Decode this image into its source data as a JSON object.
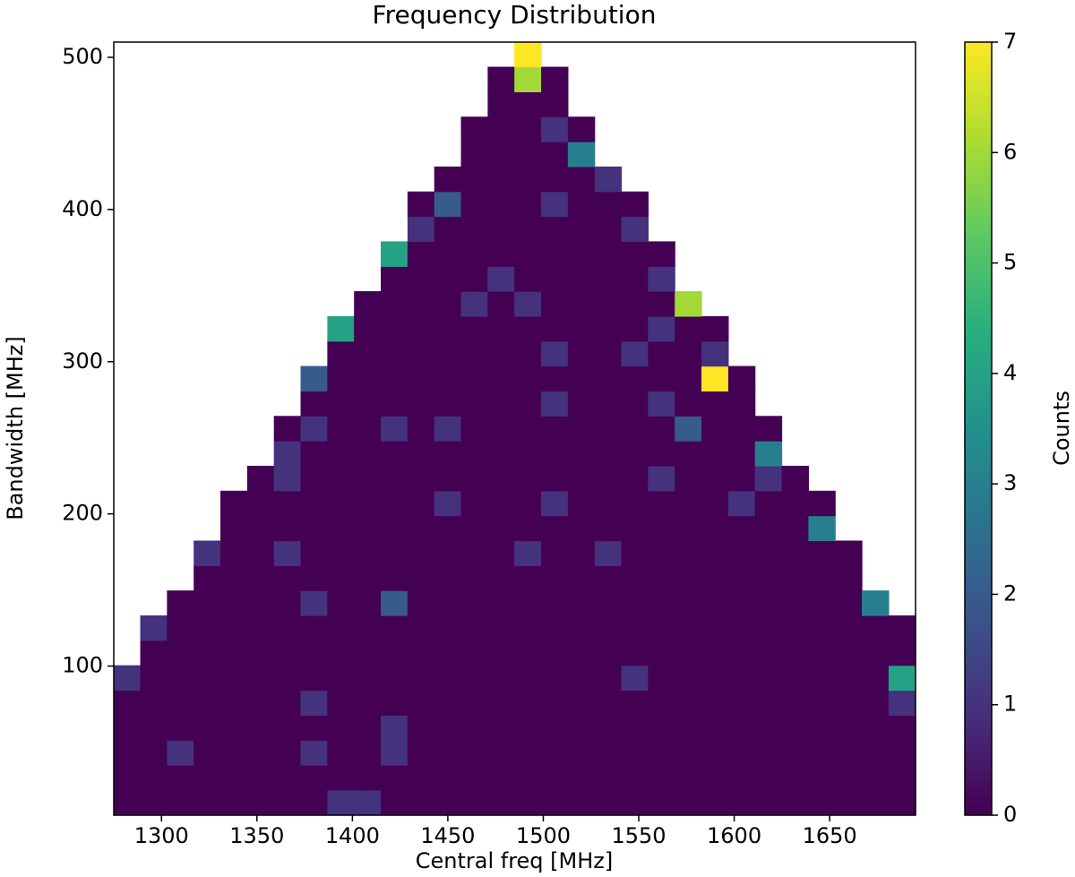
{
  "chart_data": {
    "type": "heatmap",
    "title": "Frequency Distribution",
    "x_label": "Central freq [MHz]",
    "y_label": "Bandwidth [MHz]",
    "colorbar_label": "Counts",
    "colormap": "viridis",
    "xlim": [
      1275,
      1695
    ],
    "ylim": [
      2,
      510
    ],
    "clim": [
      0,
      7
    ],
    "xticks": [
      1300,
      1350,
      1400,
      1450,
      1500,
      1550,
      1600,
      1650
    ],
    "yticks": [
      100,
      200,
      300,
      400,
      500
    ],
    "colorbar_ticks": [
      0,
      1,
      2,
      3,
      4,
      5,
      6,
      7
    ],
    "values": [
      [
        0,
        0,
        0,
        0,
        0,
        0,
        0,
        0,
        1,
        1,
        0,
        0,
        0,
        0,
        0,
        0,
        0,
        0,
        0,
        0,
        0,
        0,
        0,
        0,
        0,
        0,
        0,
        0,
        0,
        0
      ],
      [
        0,
        0,
        0,
        0,
        0,
        0,
        0,
        0,
        0,
        0,
        0,
        0,
        0,
        0,
        0,
        0,
        0,
        0,
        0,
        0,
        0,
        0,
        0,
        0,
        0,
        0,
        0,
        0,
        0,
        0
      ],
      [
        0,
        0,
        1,
        0,
        0,
        0,
        0,
        1,
        0,
        0,
        1,
        0,
        0,
        0,
        0,
        0,
        0,
        0,
        0,
        0,
        0,
        0,
        0,
        0,
        0,
        0,
        0,
        0,
        0,
        0
      ],
      [
        0,
        0,
        0,
        0,
        0,
        0,
        0,
        0,
        0,
        0,
        1,
        0,
        0,
        0,
        0,
        0,
        0,
        0,
        0,
        0,
        0,
        0,
        0,
        0,
        0,
        0,
        0,
        0,
        0,
        0
      ],
      [
        0,
        0,
        0,
        0,
        0,
        0,
        0,
        1,
        0,
        0,
        0,
        0,
        0,
        0,
        0,
        0,
        0,
        0,
        0,
        0,
        0,
        0,
        0,
        0,
        0,
        0,
        0,
        0,
        0,
        1
      ],
      [
        1,
        0,
        0,
        0,
        0,
        0,
        0,
        0,
        0,
        0,
        0,
        0,
        0,
        0,
        0,
        0,
        0,
        0,
        0,
        1,
        0,
        0,
        0,
        0,
        0,
        0,
        0,
        0,
        0,
        4
      ],
      [
        null,
        0,
        0,
        0,
        0,
        0,
        0,
        0,
        0,
        0,
        0,
        0,
        0,
        0,
        0,
        0,
        0,
        0,
        0,
        0,
        0,
        0,
        0,
        0,
        0,
        0,
        0,
        0,
        0,
        0
      ],
      [
        null,
        1,
        0,
        0,
        0,
        0,
        0,
        0,
        0,
        0,
        0,
        0,
        0,
        0,
        0,
        0,
        0,
        0,
        0,
        0,
        0,
        0,
        0,
        0,
        0,
        0,
        0,
        0,
        0,
        0
      ],
      [
        null,
        null,
        0,
        0,
        0,
        0,
        0,
        1,
        0,
        0,
        2,
        0,
        0,
        0,
        0,
        0,
        0,
        0,
        0,
        0,
        0,
        0,
        0,
        0,
        0,
        0,
        0,
        0,
        3,
        null
      ],
      [
        null,
        null,
        null,
        0,
        0,
        0,
        0,
        0,
        0,
        0,
        0,
        0,
        0,
        0,
        0,
        0,
        0,
        0,
        0,
        0,
        0,
        0,
        0,
        0,
        0,
        0,
        0,
        0,
        null,
        null
      ],
      [
        null,
        null,
        null,
        1,
        0,
        0,
        1,
        0,
        0,
        0,
        0,
        0,
        0,
        0,
        0,
        1,
        0,
        0,
        1,
        0,
        0,
        0,
        0,
        0,
        0,
        0,
        0,
        0,
        null,
        null
      ],
      [
        null,
        null,
        null,
        null,
        0,
        0,
        0,
        0,
        0,
        0,
        0,
        0,
        0,
        0,
        0,
        0,
        0,
        0,
        0,
        0,
        0,
        0,
        0,
        0,
        0,
        0,
        3,
        null,
        null,
        null
      ],
      [
        null,
        null,
        null,
        null,
        0,
        0,
        0,
        0,
        0,
        0,
        0,
        0,
        1,
        0,
        0,
        0,
        1,
        0,
        0,
        0,
        0,
        0,
        0,
        1,
        0,
        0,
        0,
        null,
        null,
        null
      ],
      [
        null,
        null,
        null,
        null,
        null,
        0,
        1,
        0,
        0,
        0,
        0,
        0,
        0,
        0,
        0,
        0,
        0,
        0,
        0,
        0,
        1,
        0,
        0,
        0,
        1,
        0,
        null,
        null,
        null,
        null
      ],
      [
        null,
        null,
        null,
        null,
        null,
        null,
        1,
        0,
        0,
        0,
        0,
        0,
        0,
        0,
        0,
        0,
        0,
        0,
        0,
        0,
        0,
        0,
        0,
        0,
        3,
        null,
        null,
        null,
        null,
        null
      ],
      [
        null,
        null,
        null,
        null,
        null,
        null,
        0,
        1,
        0,
        0,
        1,
        0,
        1,
        0,
        0,
        0,
        0,
        0,
        0,
        0,
        0,
        2,
        0,
        0,
        0,
        null,
        null,
        null,
        null,
        null
      ],
      [
        null,
        null,
        null,
        null,
        null,
        null,
        null,
        0,
        0,
        0,
        0,
        0,
        0,
        0,
        0,
        0,
        1,
        0,
        0,
        0,
        1,
        0,
        0,
        0,
        null,
        null,
        null,
        null,
        null,
        null
      ],
      [
        null,
        null,
        null,
        null,
        null,
        null,
        null,
        2,
        0,
        0,
        0,
        0,
        0,
        0,
        0,
        0,
        0,
        0,
        0,
        0,
        0,
        0,
        7,
        0,
        null,
        null,
        null,
        null,
        null,
        null
      ],
      [
        null,
        null,
        null,
        null,
        null,
        null,
        null,
        null,
        0,
        0,
        0,
        0,
        0,
        0,
        0,
        0,
        1,
        0,
        0,
        1,
        0,
        0,
        1,
        null,
        null,
        null,
        null,
        null,
        null,
        null
      ],
      [
        null,
        null,
        null,
        null,
        null,
        null,
        null,
        null,
        4,
        0,
        0,
        0,
        0,
        0,
        0,
        0,
        0,
        0,
        0,
        0,
        1,
        0,
        0,
        null,
        null,
        null,
        null,
        null,
        null,
        null
      ],
      [
        null,
        null,
        null,
        null,
        null,
        null,
        null,
        null,
        null,
        0,
        0,
        0,
        0,
        1,
        0,
        1,
        0,
        0,
        0,
        0,
        0,
        6,
        null,
        null,
        null,
        null,
        null,
        null,
        null,
        null
      ],
      [
        null,
        null,
        null,
        null,
        null,
        null,
        null,
        null,
        null,
        null,
        0,
        0,
        0,
        0,
        1,
        0,
        0,
        0,
        0,
        0,
        1,
        null,
        null,
        null,
        null,
        null,
        null,
        null,
        null,
        null
      ],
      [
        null,
        null,
        null,
        null,
        null,
        null,
        null,
        null,
        null,
        null,
        4,
        0,
        0,
        0,
        0,
        0,
        0,
        0,
        0,
        0,
        0,
        null,
        null,
        null,
        null,
        null,
        null,
        null,
        null,
        null
      ],
      [
        null,
        null,
        null,
        null,
        null,
        null,
        null,
        null,
        null,
        null,
        null,
        1,
        0,
        0,
        0,
        0,
        0,
        0,
        0,
        1,
        null,
        null,
        null,
        null,
        null,
        null,
        null,
        null,
        null,
        null
      ],
      [
        null,
        null,
        null,
        null,
        null,
        null,
        null,
        null,
        null,
        null,
        null,
        0,
        2,
        0,
        0,
        0,
        1,
        0,
        0,
        0,
        null,
        null,
        null,
        null,
        null,
        null,
        null,
        null,
        null,
        null
      ],
      [
        null,
        null,
        null,
        null,
        null,
        null,
        null,
        null,
        null,
        null,
        null,
        null,
        0,
        0,
        0,
        0,
        0,
        0,
        1,
        null,
        null,
        null,
        null,
        null,
        null,
        null,
        null,
        null,
        null,
        null
      ],
      [
        null,
        null,
        null,
        null,
        null,
        null,
        null,
        null,
        null,
        null,
        null,
        null,
        null,
        0,
        0,
        0,
        0,
        3,
        null,
        null,
        null,
        null,
        null,
        null,
        null,
        null,
        null,
        null,
        null,
        null
      ],
      [
        null,
        null,
        null,
        null,
        null,
        null,
        null,
        null,
        null,
        null,
        null,
        null,
        null,
        0,
        0,
        0,
        1,
        0,
        null,
        null,
        null,
        null,
        null,
        null,
        null,
        null,
        null,
        null,
        null,
        null
      ],
      [
        null,
        null,
        null,
        null,
        null,
        null,
        null,
        null,
        null,
        null,
        null,
        null,
        null,
        null,
        0,
        0,
        0,
        null,
        null,
        null,
        null,
        null,
        null,
        null,
        null,
        null,
        null,
        null,
        null,
        null
      ],
      [
        null,
        null,
        null,
        null,
        null,
        null,
        null,
        null,
        null,
        null,
        null,
        null,
        null,
        null,
        0,
        6,
        0,
        null,
        null,
        null,
        null,
        null,
        null,
        null,
        null,
        null,
        null,
        null,
        null,
        null
      ],
      [
        null,
        null,
        null,
        null,
        null,
        null,
        null,
        null,
        null,
        null,
        null,
        null,
        null,
        null,
        null,
        7,
        null,
        null,
        null,
        null,
        null,
        null,
        null,
        null,
        null,
        null,
        null,
        null,
        null,
        null
      ]
    ]
  }
}
